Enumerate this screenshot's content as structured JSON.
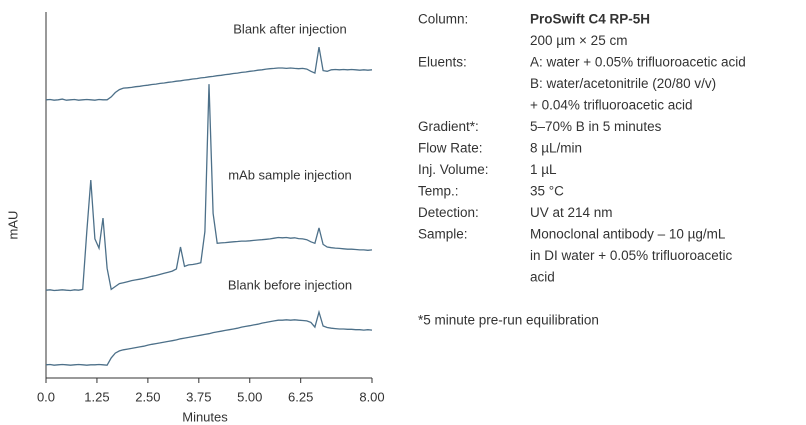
{
  "chart_data": {
    "type": "line",
    "xlabel": "Minutes",
    "ylabel": "mAU",
    "x": [
      0,
      0.1,
      0.2,
      0.3,
      0.4,
      0.5,
      0.6,
      0.7,
      0.8,
      0.9,
      1,
      1.1,
      1.2,
      1.3,
      1.4,
      1.5,
      1.6,
      1.7,
      1.8,
      1.9,
      2,
      2.1,
      2.2,
      2.3,
      2.4,
      2.5,
      2.6,
      2.7,
      2.8,
      2.9,
      3,
      3.1,
      3.2,
      3.3,
      3.4,
      3.5,
      3.6,
      3.7,
      3.8,
      3.9,
      4,
      4.1,
      4.2,
      4.3,
      4.4,
      4.5,
      4.6,
      4.7,
      4.8,
      4.9,
      5,
      5.1,
      5.2,
      5.3,
      5.4,
      5.5,
      5.6,
      5.7,
      5.8,
      5.9,
      6,
      6.1,
      6.2,
      6.3,
      6.4,
      6.5,
      6.6,
      6.7,
      6.8,
      6.9,
      7,
      7.1,
      7.2,
      7.3,
      7.4,
      7.5,
      7.6,
      7.7,
      7.8,
      7.9,
      8
    ],
    "series": [
      {
        "name": "Blank after injection",
        "color": "#4d7089",
        "values": [
          76.0,
          76.1,
          75.9,
          76.0,
          76.2,
          75.9,
          76.0,
          76.1,
          75.9,
          76.0,
          76.1,
          76.0,
          75.9,
          76.1,
          76.0,
          76.0,
          76.8,
          78.0,
          78.8,
          79.2,
          79.3,
          79.4,
          79.6,
          79.7,
          79.9,
          80.0,
          80.2,
          80.3,
          80.5,
          80.6,
          80.8,
          80.9,
          81.1,
          81.2,
          81.4,
          81.5,
          81.7,
          81.8,
          82.0,
          82.1,
          82.3,
          82.4,
          82.6,
          82.7,
          82.9,
          83.0,
          83.2,
          83.3,
          83.5,
          83.6,
          83.8,
          83.9,
          84.1,
          84.2,
          84.4,
          84.5,
          84.6,
          84.7,
          84.7,
          84.6,
          84.7,
          84.6,
          84.5,
          84.6,
          84.4,
          83.8,
          83.3,
          90.4,
          84.0,
          83.8,
          84.2,
          84.3,
          84.2,
          84.3,
          84.2,
          84.3,
          84.2,
          84.1,
          84.2,
          84.1,
          84.2
        ]
      },
      {
        "name": "mAb sample injection",
        "color": "#4d7089",
        "values": [
          24.0,
          24.1,
          23.9,
          24.0,
          24.1,
          24.0,
          23.9,
          24.1,
          24.0,
          24.2,
          40.0,
          54.1,
          38.0,
          35.5,
          43.7,
          30.0,
          24.2,
          25.0,
          25.8,
          26.0,
          26.3,
          26.6,
          26.8,
          27.0,
          27.2,
          27.5,
          27.8,
          28.0,
          28.3,
          28.6,
          28.9,
          29.2,
          29.8,
          35.8,
          30.5,
          30.9,
          31.0,
          31.2,
          31.5,
          40.0,
          80.3,
          45.0,
          36.8,
          36.9,
          37.0,
          37.1,
          37.2,
          37.3,
          37.4,
          37.4,
          37.5,
          37.6,
          37.7,
          37.8,
          37.9,
          38.0,
          38.2,
          38.4,
          38.3,
          38.4,
          38.2,
          38.3,
          38.1,
          38.0,
          37.8,
          37.2,
          36.8,
          41.0,
          36.5,
          35.8,
          35.6,
          35.5,
          35.4,
          35.3,
          35.2,
          35.2,
          35.1,
          35.0,
          35.0,
          34.9,
          35.0
        ]
      },
      {
        "name": "Blank before injection",
        "color": "#4d7089",
        "values": [
          3.6,
          3.7,
          3.5,
          3.6,
          3.7,
          3.6,
          3.5,
          3.6,
          3.7,
          3.6,
          3.5,
          3.6,
          3.6,
          3.7,
          3.6,
          3.5,
          5.5,
          6.8,
          7.4,
          7.7,
          7.9,
          8.1,
          8.3,
          8.5,
          8.7,
          9.0,
          9.2,
          9.4,
          9.6,
          9.8,
          10.0,
          10.2,
          10.4,
          10.7,
          10.9,
          11.1,
          11.3,
          11.5,
          11.7,
          11.9,
          12.1,
          12.4,
          12.6,
          12.8,
          13.0,
          13.2,
          13.4,
          13.6,
          13.9,
          14.1,
          14.3,
          14.5,
          14.7,
          15.0,
          15.2,
          15.4,
          15.6,
          15.8,
          15.8,
          15.9,
          15.8,
          15.9,
          15.8,
          15.7,
          15.6,
          15.2,
          13.9,
          18.0,
          14.2,
          13.8,
          13.6,
          13.5,
          13.4,
          13.4,
          13.3,
          13.3,
          13.2,
          13.2,
          13.1,
          13.2,
          13.1
        ]
      }
    ],
    "xlim": [
      0,
      8
    ],
    "xticks": [
      {
        "value": 0,
        "label": "0.0"
      },
      1.25,
      {
        "value": 2.5,
        "label": "2.50"
      },
      3.75,
      {
        "value": 5,
        "label": "5.00"
      },
      6.25,
      {
        "value": 8,
        "label": "8.00"
      }
    ],
    "ylim": [
      0,
      100
    ]
  },
  "conditions": [
    {
      "label": "Column:",
      "lines": [
        "ProSwift C4 RP-5H",
        "200 µm × 25 cm"
      ]
    },
    {
      "label": "Eluents:",
      "lines": [
        "A: water + 0.05% trifluoroacetic acid",
        "B: water/acetonitrile (20/80 v/v)",
        "+ 0.04% trifluoroacetic acid"
      ]
    },
    {
      "label": "Gradient*:",
      "lines": [
        "5–70% B in 5 minutes"
      ]
    },
    {
      "label": "Flow Rate:",
      "lines": [
        "8 µL/min"
      ]
    },
    {
      "label": "Inj. Volume:",
      "lines": [
        "1 µL"
      ]
    },
    {
      "label": "Temp.:",
      "lines": [
        "35 °C"
      ]
    },
    {
      "label": "Detection:",
      "lines": [
        "UV at 214 nm"
      ]
    },
    {
      "label": "Sample:",
      "lines": [
        "Monoclonal antibody – 10 µg/mL",
        "in DI water + 0.05% trifluoroacetic",
        "acid"
      ]
    }
  ],
  "footnote": "*5 minute pre-run equilibration"
}
